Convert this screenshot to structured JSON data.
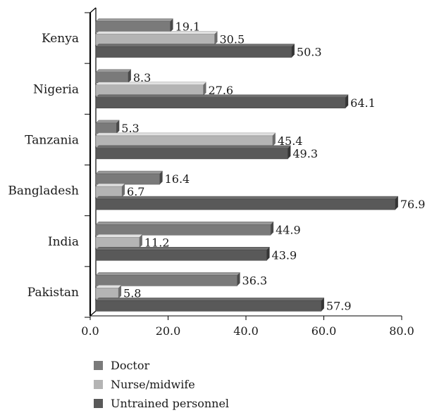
{
  "chart_data": {
    "type": "bar",
    "orientation": "horizontal",
    "categories": [
      "Kenya",
      "Nigeria",
      "Tanzania",
      "Bangladesh",
      "India",
      "Pakistan"
    ],
    "series": [
      {
        "name": "Doctor",
        "values": [
          19.1,
          8.3,
          5.3,
          16.4,
          44.9,
          36.3
        ],
        "color": "#7a7a7a"
      },
      {
        "name": "Nurse/midwife",
        "values": [
          30.5,
          27.6,
          45.4,
          6.7,
          11.2,
          5.8
        ],
        "color": "#b4b4b4"
      },
      {
        "name": "Untrained personnel",
        "values": [
          50.3,
          64.1,
          49.3,
          76.9,
          43.9,
          57.9
        ],
        "color": "#595959"
      }
    ],
    "xlim": [
      0,
      80
    ],
    "xticks": [
      "0.0",
      "20.0",
      "40.0",
      "60.0",
      "80.0"
    ],
    "legend_position": "bottom-left",
    "grid": false,
    "style": "3d"
  }
}
